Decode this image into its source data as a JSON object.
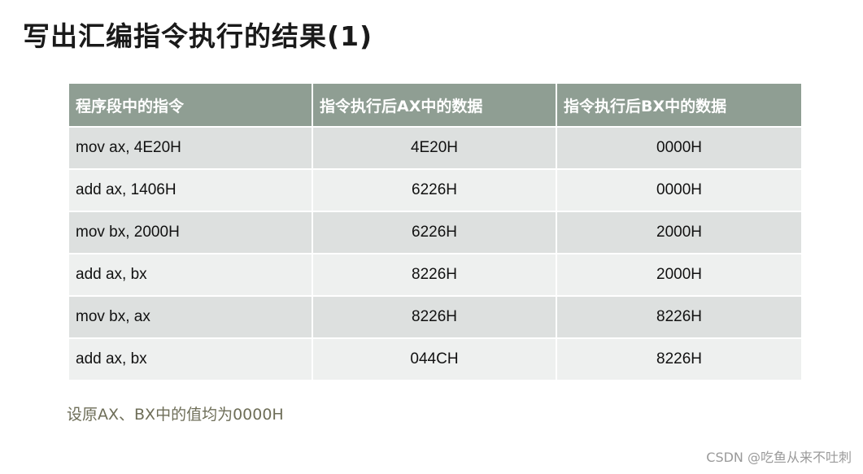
{
  "title": "写出汇编指令执行的结果(1)",
  "table": {
    "headers": [
      "程序段中的指令",
      "指令执行后AX中的数据",
      "指令执行后BX中的数据"
    ],
    "rows": [
      [
        "mov ax, 4E20H",
        "4E20H",
        "0000H"
      ],
      [
        "add ax, 1406H",
        "6226H",
        "0000H"
      ],
      [
        "mov bx, 2000H",
        "6226H",
        "2000H"
      ],
      [
        "add ax, bx",
        "8226H",
        "2000H"
      ],
      [
        "mov bx, ax",
        "8226H",
        "8226H"
      ],
      [
        "add ax, bx",
        "044CH",
        "8226H"
      ]
    ]
  },
  "note": "设原AX、BX中的值均为0000H",
  "watermark": "CSDN @吃鱼从来不吐刺",
  "colors": {
    "header_bg": "#8f9e93",
    "row_odd_bg": "#dde0df",
    "row_even_bg": "#eef0ef",
    "note_color": "#6e6e58"
  }
}
